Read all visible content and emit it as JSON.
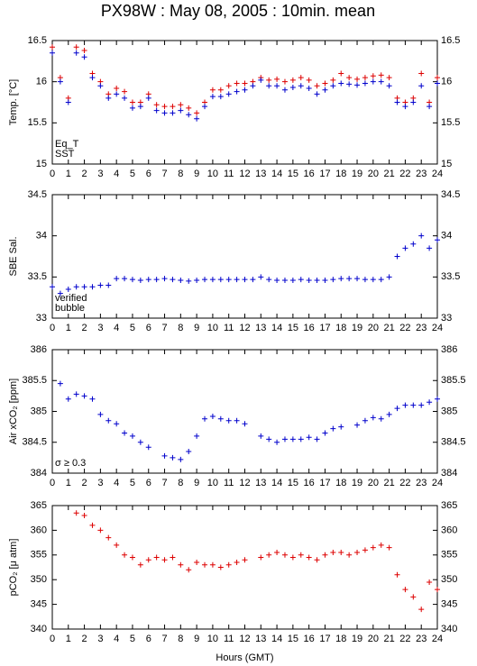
{
  "title": "PX98W : May 08, 2005 : 10min. mean",
  "chart_data": [
    {
      "type": "scatter",
      "ylabel": "Temp. [°C]",
      "xlim": [
        0,
        24
      ],
      "xticks": [
        0,
        1,
        2,
        3,
        4,
        5,
        6,
        7,
        8,
        9,
        10,
        11,
        12,
        13,
        14,
        15,
        16,
        17,
        18,
        19,
        20,
        21,
        22,
        23,
        24
      ],
      "ylim": [
        15,
        16.5
      ],
      "yticks": [
        15,
        {
          "value": 15.5,
          "label": "15.5"
        },
        16,
        {
          "value": 16.5,
          "label": "16.5"
        }
      ],
      "x": [
        0,
        0.5,
        1,
        1.5,
        2,
        2.5,
        3,
        3.5,
        4,
        4.5,
        5,
        5.5,
        6,
        6.5,
        7,
        7.5,
        8,
        8.5,
        9,
        9.5,
        10,
        10.5,
        11,
        11.5,
        12,
        12.5,
        13,
        13.5,
        14,
        14.5,
        15,
        15.5,
        16,
        16.5,
        17,
        17.5,
        18,
        18.5,
        19,
        19.5,
        20,
        20.5,
        21,
        21.5,
        22,
        22.5,
        23,
        23.5,
        24
      ],
      "series": [
        {
          "name": "Eq_T",
          "color": "#dd0000",
          "values": [
            16.42,
            16.05,
            15.8,
            16.42,
            16.38,
            16.1,
            16.0,
            15.85,
            15.92,
            15.88,
            15.75,
            15.75,
            15.85,
            15.72,
            15.7,
            15.7,
            15.72,
            15.68,
            15.62,
            15.75,
            15.9,
            15.9,
            15.95,
            15.98,
            15.98,
            16.0,
            16.05,
            16.02,
            16.03,
            16.0,
            16.02,
            16.05,
            16.02,
            15.95,
            15.98,
            16.02,
            16.1,
            16.05,
            16.03,
            16.05,
            16.07,
            16.08,
            16.05,
            15.8,
            15.75,
            15.8,
            16.1,
            15.75,
            16.05
          ]
        },
        {
          "name": "SST",
          "color": "#0000cc",
          "values": [
            16.35,
            16.0,
            15.75,
            16.35,
            16.3,
            16.05,
            15.95,
            15.8,
            15.85,
            15.8,
            15.68,
            15.7,
            15.8,
            15.65,
            15.62,
            15.62,
            15.65,
            15.6,
            15.55,
            15.7,
            15.82,
            15.82,
            15.85,
            15.88,
            15.9,
            15.95,
            16.02,
            15.95,
            15.95,
            15.9,
            15.93,
            15.95,
            15.92,
            15.85,
            15.9,
            15.95,
            15.98,
            15.97,
            15.96,
            15.98,
            16.0,
            16.0,
            15.95,
            15.75,
            15.7,
            15.75,
            15.95,
            15.7,
            15.98
          ]
        }
      ]
    },
    {
      "type": "scatter",
      "ylabel": "SBE Sal.",
      "xlim": [
        0,
        24
      ],
      "xticks": [
        0,
        1,
        2,
        3,
        4,
        5,
        6,
        7,
        8,
        9,
        10,
        11,
        12,
        13,
        14,
        15,
        16,
        17,
        18,
        19,
        20,
        21,
        22,
        23,
        24
      ],
      "ylim": [
        33,
        34.5
      ],
      "yticks": [
        33,
        {
          "value": 33.5,
          "label": "33.5"
        },
        34,
        {
          "value": 34.5,
          "label": "34.5"
        }
      ],
      "annotations": [
        {
          "text": "verified",
          "color": "#0000cc"
        },
        {
          "text": "bubble",
          "color": "#cc00cc"
        }
      ],
      "x": [
        0,
        0.5,
        1,
        1.5,
        2,
        2.5,
        3,
        3.5,
        4,
        4.5,
        5,
        5.5,
        6,
        6.5,
        7,
        7.5,
        8,
        8.5,
        9,
        9.5,
        10,
        10.5,
        11,
        11.5,
        12,
        12.5,
        13,
        13.5,
        14,
        14.5,
        15,
        15.5,
        16,
        16.5,
        17,
        17.5,
        18,
        18.5,
        19,
        19.5,
        20,
        20.5,
        21,
        21.5,
        22,
        22.5,
        23,
        23.5,
        24
      ],
      "series": [
        {
          "color": "#0000cc",
          "values": [
            33.38,
            33.3,
            33.35,
            33.38,
            33.38,
            33.38,
            33.4,
            33.4,
            33.48,
            33.48,
            33.47,
            33.46,
            33.47,
            33.47,
            33.48,
            33.47,
            33.46,
            33.45,
            33.46,
            33.47,
            33.47,
            33.47,
            33.47,
            33.47,
            33.47,
            33.47,
            33.5,
            33.47,
            33.46,
            33.46,
            33.46,
            33.47,
            33.46,
            33.46,
            33.46,
            33.47,
            33.48,
            33.48,
            33.48,
            33.47,
            33.47,
            33.47,
            33.5,
            33.75,
            33.85,
            33.9,
            34.0,
            33.85,
            33.95
          ]
        }
      ]
    },
    {
      "type": "scatter",
      "ylabel": "Air xCO₂ [ppm]",
      "xlim": [
        0,
        24
      ],
      "xticks": [
        0,
        1,
        2,
        3,
        4,
        5,
        6,
        7,
        8,
        9,
        10,
        11,
        12,
        13,
        14,
        15,
        16,
        17,
        18,
        19,
        20,
        21,
        22,
        23,
        24
      ],
      "ylim": [
        384,
        386
      ],
      "yticks": [
        384,
        {
          "value": 384.5,
          "label": "384.5"
        },
        385,
        {
          "value": 385.5,
          "label": "385.5"
        },
        386
      ],
      "annotations": [
        {
          "text": "σ ≥ 0.3",
          "color": "#cc00cc"
        }
      ],
      "x": [
        0,
        0.5,
        1,
        1.5,
        2,
        2.5,
        3,
        3.5,
        4,
        4.5,
        5,
        5.5,
        6,
        6.5,
        7,
        7.5,
        8,
        8.5,
        9,
        9.5,
        10,
        10.5,
        11,
        11.5,
        12,
        12.5,
        13,
        13.5,
        14,
        14.5,
        15,
        15.5,
        16,
        16.5,
        17,
        17.5,
        18,
        18.5,
        19,
        19.5,
        20,
        20.5,
        21,
        21.5,
        22,
        22.5,
        23,
        23.5,
        24
      ],
      "series": [
        {
          "color": "#0000cc",
          "values": [
            null,
            385.45,
            385.2,
            385.28,
            385.25,
            385.2,
            384.95,
            384.85,
            384.8,
            384.65,
            384.6,
            384.5,
            384.42,
            null,
            384.28,
            384.25,
            384.22,
            384.35,
            384.6,
            384.88,
            384.92,
            384.88,
            384.85,
            384.85,
            384.8,
            null,
            384.6,
            384.55,
            384.5,
            384.55,
            384.55,
            384.55,
            384.58,
            384.55,
            384.65,
            384.72,
            384.75,
            null,
            384.78,
            384.85,
            384.9,
            384.88,
            384.95,
            385.05,
            385.1,
            385.1,
            385.1,
            385.15,
            385.2
          ]
        }
      ]
    },
    {
      "type": "scatter",
      "ylabel": "pCO₂ [μ atm]",
      "xlabel": "Hours (GMT)",
      "xlim": [
        0,
        24
      ],
      "xticks": [
        0,
        1,
        2,
        3,
        4,
        5,
        6,
        7,
        8,
        9,
        10,
        11,
        12,
        13,
        14,
        15,
        16,
        17,
        18,
        19,
        20,
        21,
        22,
        23,
        24
      ],
      "ylim": [
        340,
        365
      ],
      "yticks": [
        340,
        345,
        350,
        355,
        360,
        365
      ],
      "x": [
        0,
        0.5,
        1,
        1.5,
        2,
        2.5,
        3,
        3.5,
        4,
        4.5,
        5,
        5.5,
        6,
        6.5,
        7,
        7.5,
        8,
        8.5,
        9,
        9.5,
        10,
        10.5,
        11,
        11.5,
        12,
        12.5,
        13,
        13.5,
        14,
        14.5,
        15,
        15.5,
        16,
        16.5,
        17,
        17.5,
        18,
        18.5,
        19,
        19.5,
        20,
        20.5,
        21,
        21.5,
        22,
        22.5,
        23,
        23.5,
        24
      ],
      "series": [
        {
          "color": "#dd0000",
          "values": [
            null,
            null,
            null,
            363.5,
            363,
            361,
            360,
            358.5,
            357,
            355,
            354.5,
            353,
            354,
            354.5,
            354,
            354.5,
            353,
            352,
            353.5,
            353,
            353,
            352.5,
            353,
            353.5,
            354,
            null,
            354.5,
            355,
            355.5,
            355,
            354.5,
            355,
            354.5,
            354,
            355,
            355.5,
            355.5,
            355,
            355.5,
            356,
            356.5,
            357,
            356.5,
            351,
            348,
            346.5,
            344,
            349.5,
            348
          ]
        }
      ]
    }
  ]
}
